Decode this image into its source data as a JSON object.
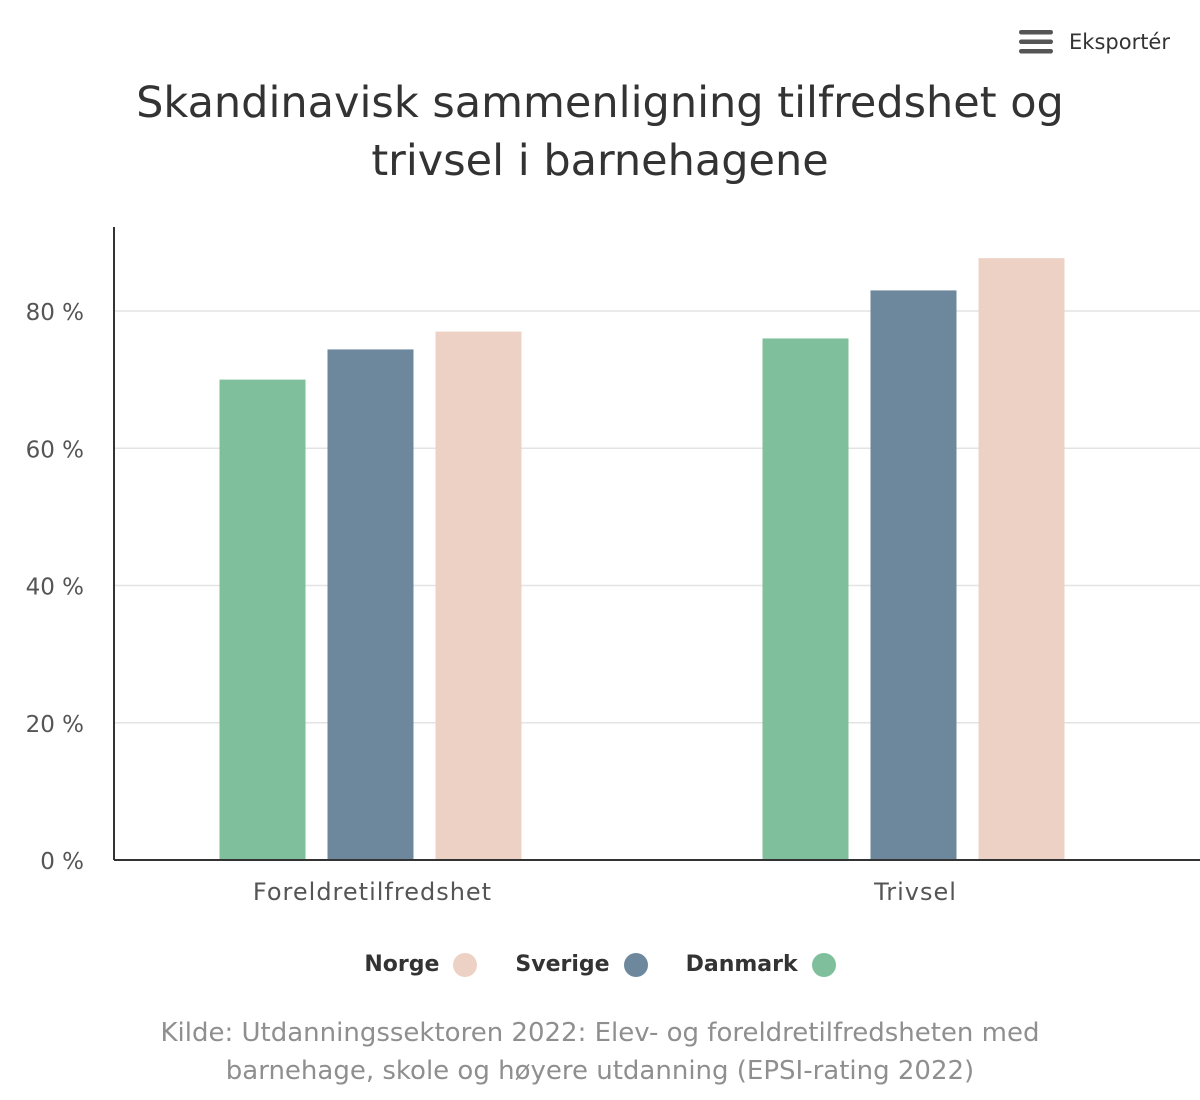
{
  "export": {
    "label": "Eksportér",
    "icon": "menu-icon"
  },
  "title_lines": [
    "Skandinavisk sammenligning tilfredshet og",
    "trivsel i barnehagene"
  ],
  "source_lines": [
    "Kilde: Utdanningssektoren 2022: Elev- og foreldretilfredsheten med",
    "barnehage, skole og høyere utdanning (EPSI-rating 2022)"
  ],
  "legend": [
    {
      "name": "Norge",
      "color": "#edd1c4"
    },
    {
      "name": "Sverige",
      "color": "#6d889d"
    },
    {
      "name": "Danmark",
      "color": "#7fbf9b"
    }
  ],
  "chart_data": {
    "type": "bar",
    "title": "Skandinavisk sammenligning tilfredshet og trivsel i barnehagene",
    "categories": [
      "Foreldretilfredshet",
      "Trivsel"
    ],
    "series": [
      {
        "name": "Danmark",
        "values": [
          70,
          76
        ],
        "color": "#7fbf9b"
      },
      {
        "name": "Sverige",
        "values": [
          74.4,
          83
        ],
        "color": "#6d889d"
      },
      {
        "name": "Norge",
        "values": [
          77,
          87.7
        ],
        "color": "#edd1c4"
      }
    ],
    "y_ticks": [
      "0 %",
      "20 %",
      "40 %",
      "60 %",
      "80 %"
    ],
    "y_tick_values": [
      0,
      20,
      40,
      60,
      80
    ],
    "ylim": [
      0,
      92
    ],
    "grid": true,
    "legend_position": "bottom"
  }
}
